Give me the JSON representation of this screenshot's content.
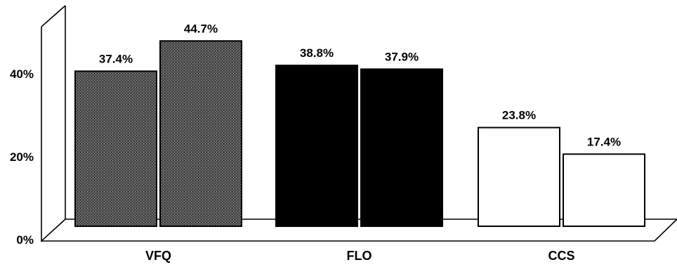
{
  "chart_data": {
    "type": "bar",
    "categories": [
      "VFQ",
      "FLO",
      "CCS"
    ],
    "series": [
      {
        "values": [
          37.4,
          38.8,
          23.8
        ]
      },
      {
        "values": [
          44.7,
          37.9,
          17.4
        ]
      }
    ],
    "data_labels": [
      [
        "37.4%",
        "38.8%",
        "23.8%"
      ],
      [
        "44.7%",
        "37.9%",
        "17.4%"
      ]
    ],
    "y_ticks": [
      {
        "value": 0,
        "label": "0%"
      },
      {
        "value": 20,
        "label": "20%"
      },
      {
        "value": 40,
        "label": "40%"
      }
    ],
    "ylim": [
      0,
      50
    ],
    "grid": false,
    "legend": "none",
    "title": "",
    "xlabel": "",
    "ylabel": "",
    "fills": {
      "VFQ": "#555555",
      "FLO": "#000000",
      "CCS": "#ffffff"
    }
  }
}
